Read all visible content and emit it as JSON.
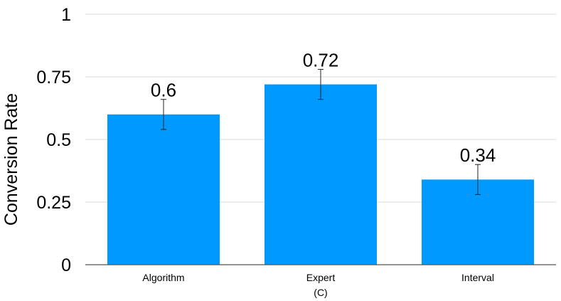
{
  "chart_data": {
    "type": "bar",
    "categories": [
      "Algorithm",
      "Expert",
      "Interval"
    ],
    "values": [
      0.6,
      0.72,
      0.34
    ],
    "value_labels": [
      "0.6",
      "0.72",
      "0.34"
    ],
    "error_low": [
      0.54,
      0.66,
      0.28
    ],
    "error_high": [
      0.66,
      0.78,
      0.4
    ],
    "title": "",
    "xlabel": "(C)",
    "ylabel": "Conversion Rate",
    "ylim": [
      0,
      1
    ],
    "yticks": [
      0,
      0.25,
      0.5,
      0.75,
      1
    ],
    "ytick_labels": [
      "0",
      "0.25",
      "0.5",
      "0.75",
      "1"
    ],
    "grid": true,
    "bar_color": "#0099ff",
    "grid_color": "#d9d9d9",
    "axis_color": "#555555"
  }
}
